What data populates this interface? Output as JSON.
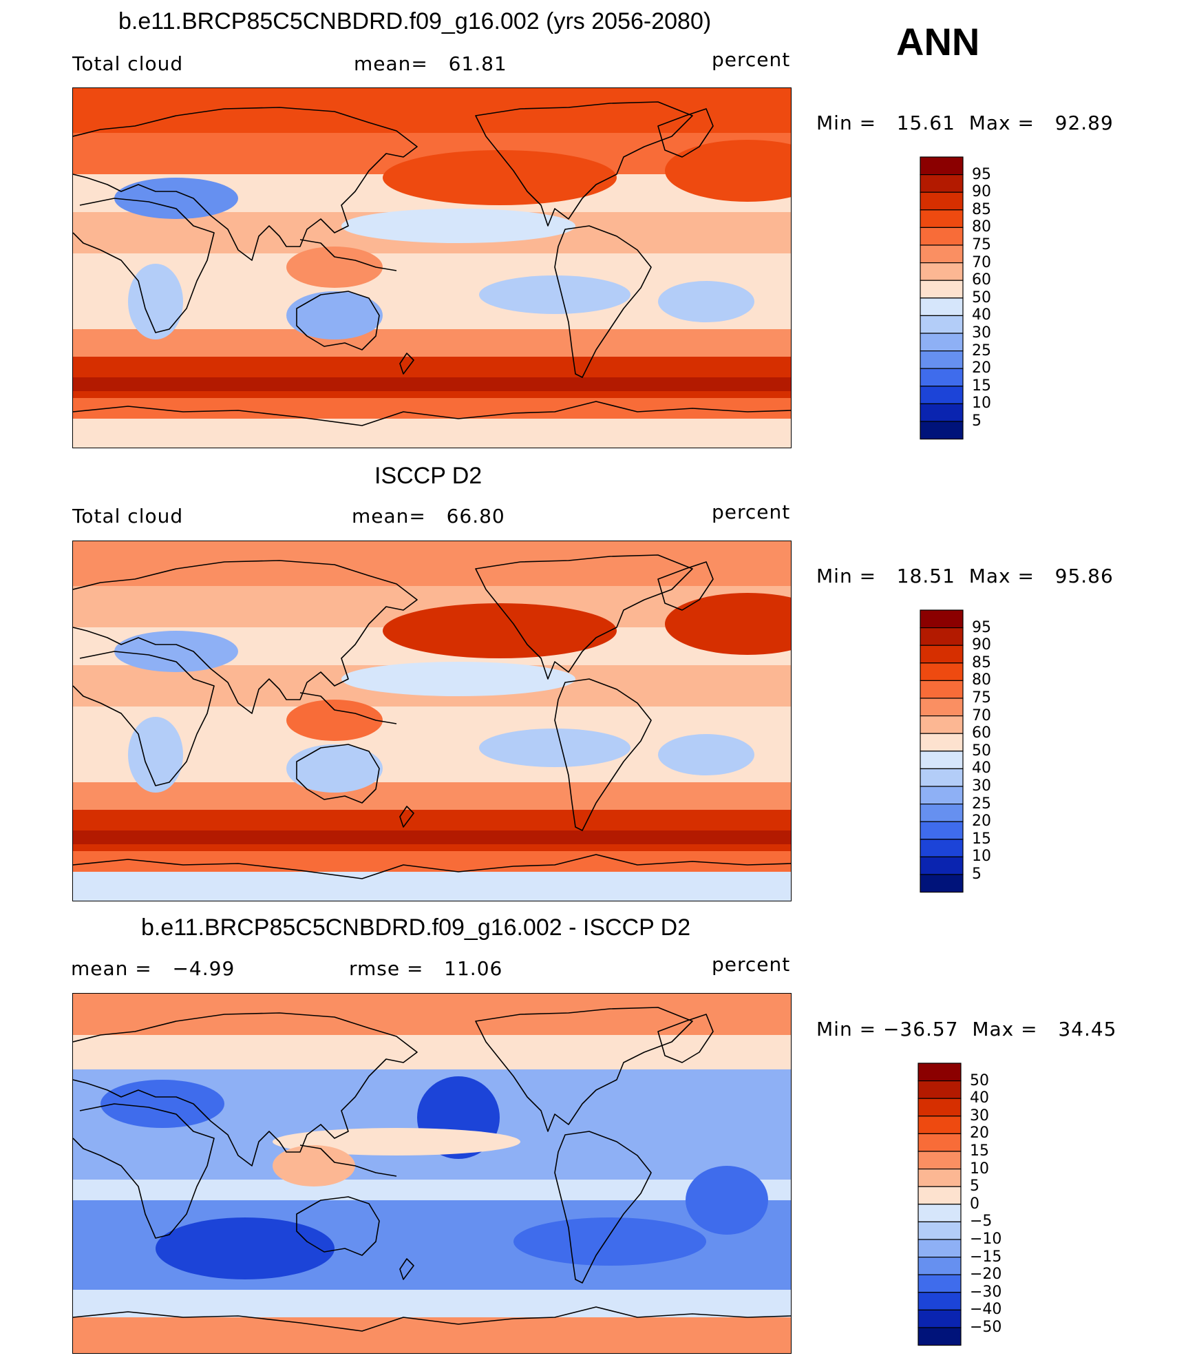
{
  "annotation": "ANN",
  "panels": [
    {
      "title": "b.e11.BRCP85C5CNBDRD.f09_g16.002 (yrs 2056-2080)",
      "left_label": "Total cloud",
      "center_label": "mean=   61.81",
      "right_label": "percent",
      "minmax": "Min =   15.61  Max =   92.89",
      "map_kind": "model"
    },
    {
      "title": "ISCCP D2",
      "left_label": "Total cloud",
      "center_label": "mean=   66.80",
      "right_label": "percent",
      "minmax": "Min =   18.51  Max =   95.86",
      "map_kind": "obs"
    },
    {
      "title": "b.e11.BRCP85C5CNBDRD.f09_g16.002 - ISCCP D2",
      "left_label": "mean =   −4.99",
      "center_label": "rmse =   11.06",
      "right_label": "percent",
      "minmax": "Min = −36.57  Max =   34.45",
      "map_kind": "diff"
    }
  ],
  "colorbars": [
    {
      "labels": [
        "95",
        "90",
        "85",
        "80",
        "75",
        "70",
        "60",
        "50",
        "40",
        "30",
        "25",
        "20",
        "15",
        "10",
        "5"
      ],
      "colors": [
        "#8b0000",
        "#b31a00",
        "#d62f00",
        "#ee4a10",
        "#f86c38",
        "#fa8f62",
        "#fcb793",
        "#fde2cf",
        "#d6e6fb",
        "#b3cdf8",
        "#8eb0f5",
        "#6690f0",
        "#3f6cec",
        "#1c44d8",
        "#0a24b0",
        "#00137a"
      ]
    },
    {
      "labels": [
        "95",
        "90",
        "85",
        "80",
        "75",
        "70",
        "60",
        "50",
        "40",
        "30",
        "25",
        "20",
        "15",
        "10",
        "5"
      ],
      "colors": [
        "#8b0000",
        "#b31a00",
        "#d62f00",
        "#ee4a10",
        "#f86c38",
        "#fa8f62",
        "#fcb793",
        "#fde2cf",
        "#d6e6fb",
        "#b3cdf8",
        "#8eb0f5",
        "#6690f0",
        "#3f6cec",
        "#1c44d8",
        "#0a24b0",
        "#00137a"
      ]
    },
    {
      "labels": [
        "50",
        "40",
        "30",
        "20",
        "15",
        "10",
        "5",
        "0",
        "−5",
        "−10",
        "−15",
        "−20",
        "−30",
        "−40",
        "−50"
      ],
      "colors": [
        "#8b0000",
        "#b31a00",
        "#d62f00",
        "#ee4a10",
        "#f86c38",
        "#fa8f62",
        "#fcb793",
        "#fde2cf",
        "#d6e6fb",
        "#b3cdf8",
        "#8eb0f5",
        "#6690f0",
        "#3f6cec",
        "#1c44d8",
        "#0a24b0",
        "#00137a"
      ]
    }
  ],
  "chart_data": [
    {
      "type": "heatmap",
      "title": "b.e11.BRCP85C5CNBDRD.f09_g16.002 (yrs 2056-2080)",
      "variable": "Total cloud",
      "units": "percent",
      "mean": 61.81,
      "min": 15.61,
      "max": 92.89,
      "colorbar_levels": [
        5,
        10,
        15,
        20,
        25,
        30,
        40,
        50,
        60,
        70,
        75,
        80,
        85,
        90,
        95
      ]
    },
    {
      "type": "heatmap",
      "title": "ISCCP D2",
      "variable": "Total cloud",
      "units": "percent",
      "mean": 66.8,
      "min": 18.51,
      "max": 95.86,
      "colorbar_levels": [
        5,
        10,
        15,
        20,
        25,
        30,
        40,
        50,
        60,
        70,
        75,
        80,
        85,
        90,
        95
      ]
    },
    {
      "type": "heatmap",
      "title": "b.e11.BRCP85C5CNBDRD.f09_g16.002 - ISCCP D2",
      "units": "percent",
      "mean": -4.99,
      "rmse": 11.06,
      "min": -36.57,
      "max": 34.45,
      "colorbar_levels": [
        -50,
        -40,
        -30,
        -20,
        -15,
        -10,
        -5,
        0,
        5,
        10,
        15,
        20,
        30,
        40,
        50
      ]
    }
  ]
}
